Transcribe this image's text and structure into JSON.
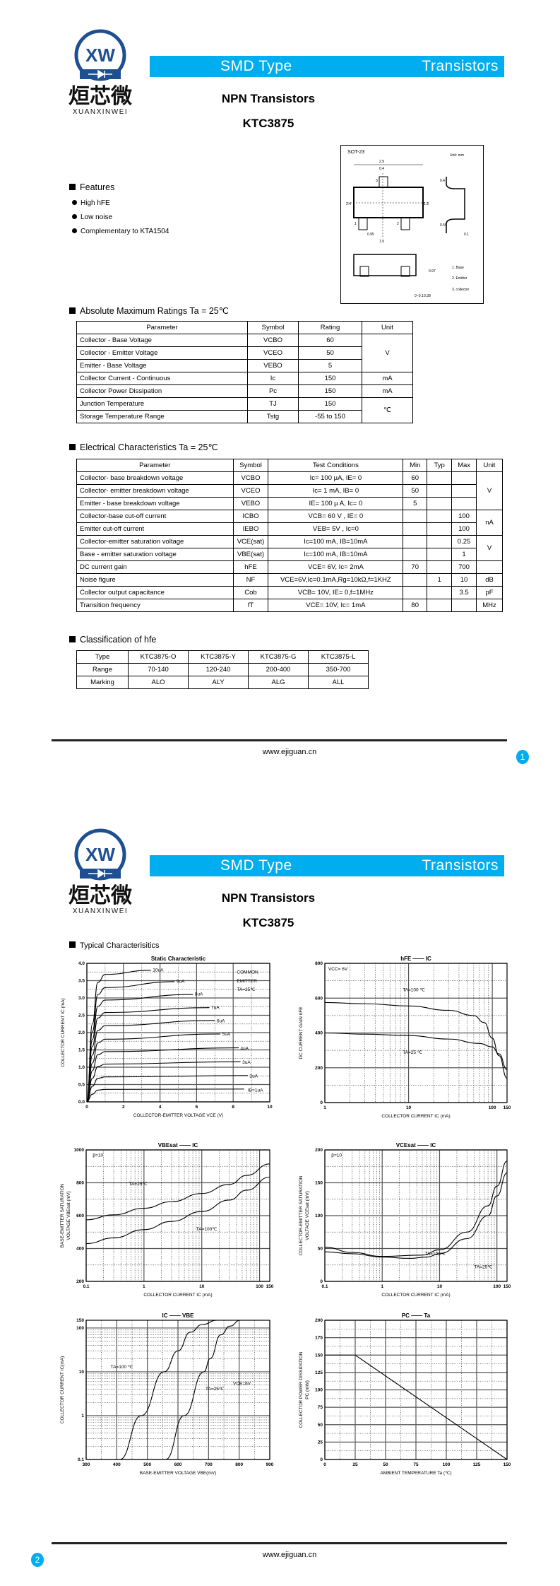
{
  "logo": {
    "letters": "XW",
    "chinese": "烜芯微",
    "latin": "XUANXINWEI",
    "color": "#1d4f91"
  },
  "header": {
    "left": "SMD Type",
    "right": "Transistors",
    "color": "#00adee"
  },
  "title": {
    "line1": "NPN  Transistors",
    "line2": "KTC3875"
  },
  "package": {
    "name": "SOT-23",
    "unit": "Unit: mm",
    "dims": [
      "2.9",
      "0.4",
      "2.4",
      "1.3",
      "0.95",
      "1.9",
      "0.97",
      "0.55",
      "0.1",
      "0.38",
      "0~0.1",
      "0.4"
    ],
    "pins": [
      "1",
      "2",
      "3"
    ],
    "legend": [
      "1. Base",
      "2. Emitter",
      "3. collector"
    ]
  },
  "features": {
    "title": "Features",
    "items": [
      "High hFE",
      "Low noise",
      "Complementary to KTA1504"
    ]
  },
  "abs_max": {
    "title": "Absolute Maximum Ratings Ta = 25℃",
    "headers": [
      "Parameter",
      "Symbol",
      "Rating",
      "Unit"
    ],
    "rows": [
      [
        "Collector - Base Voltage",
        "VCBO",
        "60"
      ],
      [
        "Collector - Emitter Voltage",
        "VCEO",
        "50"
      ],
      [
        "Emitter - Base Voltage",
        "VEBO",
        "5"
      ],
      [
        "Collector Current  - Continuous",
        "Ic",
        "150",
        "mA"
      ],
      [
        "Collector Power Dissipation",
        "Pc",
        "150",
        "mA"
      ],
      [
        "Junction Temperature",
        "TJ",
        "150"
      ],
      [
        "Storage Temperature Range",
        "Tstg",
        "-55 to 150"
      ]
    ],
    "units": {
      "v": "V",
      "c": "℃"
    }
  },
  "elec": {
    "title": "Electrical Characteristics Ta = 25℃",
    "headers": [
      "Parameter",
      "Symbol",
      "Test Conditions",
      "Min",
      "Typ",
      "Max",
      "Unit"
    ],
    "rows": [
      [
        "Collector- base breakdown voltage",
        "VCBO",
        "Ic= 100 µA,   IE= 0",
        "60",
        "",
        ""
      ],
      [
        "Collector- emitter breakdown voltage",
        "VCEO",
        "Ic= 1 mA,   IB= 0",
        "50",
        "",
        ""
      ],
      [
        "Emitter - base breakdown voltage",
        "VEBO",
        "IE= 100 µ A,   Ic= 0",
        "5",
        "",
        ""
      ],
      [
        "Collector-base cut-off current",
        "ICBO",
        "VCB= 60 V , IE= 0",
        "",
        "",
        "100"
      ],
      [
        "Emitter cut-off current",
        "IEBO",
        "VEB= 5V , Ic=0",
        "",
        "",
        "100"
      ],
      [
        "Collector-emitter saturation voltage",
        "VCE(sat)",
        "Ic=100 mA, IB=10mA",
        "",
        "",
        "0.25"
      ],
      [
        "Base - emitter saturation voltage",
        "VBE(sat)",
        "Ic=100 mA, IB=10mA",
        "",
        "",
        "1"
      ],
      [
        "DC current gain",
        "hFE",
        "VCE= 6V, Ic= 2mA",
        "70",
        "",
        "700",
        ""
      ],
      [
        "Noise figure",
        "NF",
        "VCE=6V,Ic=0.1mA,Rg=10kΩ,f=1KHZ",
        "",
        "1",
        "10",
        "dB"
      ],
      [
        "Collector output  capacitance",
        "Cob",
        "VCB= 10V, IE= 0,f=1MHz",
        "",
        "",
        "3.5",
        "pF"
      ],
      [
        "Transition frequency",
        "fT",
        "VCE= 10V, Ic= 1mA",
        "80",
        "",
        "",
        "MHz"
      ]
    ],
    "units": {
      "v1": "V",
      "na": "nA",
      "v2": "V"
    }
  },
  "classification": {
    "title": "Classification of hfe",
    "rows": [
      [
        "Type",
        "KTC3875-O",
        "KTC3875-Y",
        "KTC3875-G",
        "KTC3875-L"
      ],
      [
        "Range",
        "70-140",
        "120-240",
        "200-400",
        "350-700"
      ],
      [
        "Marking",
        "ALO",
        "ALY",
        "ALG",
        "ALL"
      ]
    ]
  },
  "footer": {
    "url": "www.ejiguan.cn",
    "page1": "1",
    "page2": "2"
  },
  "typical": {
    "title": "Typical  Characterisitics"
  },
  "chart_data": [
    {
      "type": "line",
      "title": "Static Characteristic",
      "xlabel": "COLLECTOR-EMITTER VOLTAGE   VCE   (V)",
      "ylabel": [
        "COLLECTOR CURRENT   IC   (mA)"
      ],
      "xscale": "linear",
      "yscale": "linear",
      "xlim": [
        0,
        10
      ],
      "ylim": [
        0,
        4
      ],
      "grid": true,
      "xticks": [
        0,
        2,
        4,
        6,
        8,
        10
      ],
      "yticks": [
        0,
        0.5,
        1,
        1.5,
        2,
        2.5,
        3,
        3.5,
        4
      ],
      "ytick_labels": [
        "0.0",
        "0.5",
        "1.0",
        "1.5",
        "2.0",
        "2.5",
        "3.0",
        "3.5",
        "4.0"
      ],
      "annotations": [
        "COMMON",
        "EMITTER",
        "TA=25℃"
      ],
      "series": [
        {
          "name": "IB=1uA",
          "points": [
            [
              0,
              0
            ],
            [
              0.3,
              0.22
            ],
            [
              0.6,
              0.34
            ],
            [
              1,
              0.36
            ],
            [
              8.6,
              0.37
            ]
          ]
        },
        {
          "name": "2uA",
          "points": [
            [
              0,
              0
            ],
            [
              0.3,
              0.45
            ],
            [
              0.6,
              0.68
            ],
            [
              1,
              0.72
            ],
            [
              8.8,
              0.76
            ]
          ]
        },
        {
          "name": "3uA",
          "points": [
            [
              0,
              0
            ],
            [
              0.3,
              0.68
            ],
            [
              0.6,
              1.02
            ],
            [
              1,
              1.09
            ],
            [
              8.4,
              1.16
            ]
          ]
        },
        {
          "name": "4uA",
          "points": [
            [
              0,
              0
            ],
            [
              0.3,
              0.9
            ],
            [
              0.6,
              1.36
            ],
            [
              1,
              1.45
            ],
            [
              8.3,
              1.56
            ]
          ]
        },
        {
          "name": "5uA",
          "points": [
            [
              0,
              0
            ],
            [
              0.3,
              1.12
            ],
            [
              0.6,
              1.7
            ],
            [
              1,
              1.81
            ],
            [
              7.3,
              1.96
            ]
          ]
        },
        {
          "name": "6uA",
          "points": [
            [
              0,
              0
            ],
            [
              0.3,
              1.35
            ],
            [
              0.6,
              2.06
            ],
            [
              1,
              2.2
            ],
            [
              7,
              2.35
            ]
          ]
        },
        {
          "name": "7uA",
          "points": [
            [
              0,
              0
            ],
            [
              0.3,
              1.6
            ],
            [
              0.6,
              2.42
            ],
            [
              1,
              2.58
            ],
            [
              6.7,
              2.72
            ]
          ]
        },
        {
          "name": "8uA",
          "points": [
            [
              0,
              0
            ],
            [
              0.3,
              1.8
            ],
            [
              0.6,
              2.76
            ],
            [
              1,
              2.94
            ],
            [
              5.8,
              3.1
            ]
          ]
        },
        {
          "name": "9uA",
          "points": [
            [
              0,
              0
            ],
            [
              0.3,
              2.02
            ],
            [
              0.6,
              3.1
            ],
            [
              1,
              3.3
            ],
            [
              4.8,
              3.47
            ]
          ]
        },
        {
          "name": "10uA",
          "points": [
            [
              0,
              0
            ],
            [
              0.3,
              2.25
            ],
            [
              0.6,
              3.45
            ],
            [
              1,
              3.68
            ],
            [
              3.5,
              3.8
            ]
          ]
        }
      ]
    },
    {
      "type": "line",
      "title": "hFE —— IC",
      "xlabel": "COLLECTOR CURRENT   IC   (mA)",
      "ylabel": [
        "DC CURRENT GAIN   hFE"
      ],
      "xscale": "log",
      "yscale": "linear",
      "xlim": [
        1,
        150
      ],
      "ylim": [
        0,
        800
      ],
      "grid": true,
      "xticks": [
        1,
        10,
        100,
        150
      ],
      "yticks": [
        0,
        200,
        400,
        600,
        800
      ],
      "annotations": [
        "VCC= 6V"
      ],
      "series": [
        {
          "name": "TA=100 ℃",
          "points": [
            [
              1,
              575
            ],
            [
              3,
              568
            ],
            [
              10,
              555
            ],
            [
              30,
              530
            ],
            [
              60,
              500
            ],
            [
              80,
              460
            ],
            [
              100,
              370
            ],
            [
              120,
              270
            ],
            [
              150,
              140
            ]
          ]
        },
        {
          "name": "TA=25 ℃",
          "points": [
            [
              1,
              400
            ],
            [
              3,
              393
            ],
            [
              10,
              385
            ],
            [
              30,
              365
            ],
            [
              70,
              340
            ],
            [
              100,
              320
            ],
            [
              120,
              280
            ],
            [
              150,
              190
            ]
          ]
        }
      ]
    },
    {
      "type": "line",
      "title": "VBEsat —— IC",
      "xlabel": "COLLECTOR CURRENT   IC   (mA)",
      "ylabel": [
        "BASE-EMITTER SATURATION",
        "VOLTAGE   VBEsat   (mV)"
      ],
      "xscale": "log",
      "yscale": "linear",
      "xlim": [
        0.1,
        150
      ],
      "ylim": [
        200,
        1000
      ],
      "grid": true,
      "xticks": [
        0.1,
        1,
        10,
        100,
        150
      ],
      "yticks": [
        200,
        400,
        600,
        800,
        1000
      ],
      "annotations": [
        "β=10"
      ],
      "series": [
        {
          "name": "TA=25℃",
          "points": [
            [
              0.1,
              575
            ],
            [
              0.3,
              605
            ],
            [
              1,
              645
            ],
            [
              3,
              685
            ],
            [
              10,
              735
            ],
            [
              30,
              790
            ],
            [
              60,
              845
            ],
            [
              150,
              915
            ]
          ]
        },
        {
          "name": "TA=100℃",
          "points": [
            [
              0.1,
              430
            ],
            [
              0.3,
              465
            ],
            [
              1,
              515
            ],
            [
              3,
              565
            ],
            [
              10,
              625
            ],
            [
              30,
              695
            ],
            [
              60,
              755
            ],
            [
              150,
              835
            ]
          ]
        }
      ]
    },
    {
      "type": "line",
      "title": "VCEsat —— IC",
      "xlabel": "COLLECTOR CURRENT   IC   (mA)",
      "ylabel": [
        "COLLECTOR-EMITTER SATURATION",
        "VOLTAGE   VCEsat   (mV)"
      ],
      "xscale": "log",
      "yscale": "linear",
      "xlim": [
        0.1,
        150
      ],
      "ylim": [
        0,
        200
      ],
      "grid": true,
      "xticks": [
        0.1,
        1,
        10,
        100,
        150
      ],
      "yticks": [
        0,
        50,
        100,
        150,
        200
      ],
      "annotations": [
        "β=10"
      ],
      "series": [
        {
          "name": "TA=100℃",
          "points": [
            [
              0.1,
              52
            ],
            [
              0.3,
              44
            ],
            [
              1,
              38
            ],
            [
              5,
              40
            ],
            [
              10,
              48
            ],
            [
              30,
              75
            ],
            [
              70,
              115
            ],
            [
              100,
              145
            ],
            [
              150,
              183
            ]
          ]
        },
        {
          "name": "TA=25℃",
          "points": [
            [
              0.1,
              45
            ],
            [
              0.3,
              42
            ],
            [
              1,
              37
            ],
            [
              3,
              35
            ],
            [
              6,
              37
            ],
            [
              10,
              42
            ],
            [
              30,
              65
            ],
            [
              70,
              100
            ],
            [
              100,
              130
            ],
            [
              150,
              165
            ]
          ]
        }
      ]
    },
    {
      "type": "line",
      "title": "IC —— VBE",
      "xlabel": "BASE-EMITTER VOLTAGE      VBE(mV)",
      "ylabel": [
        "COLLECTOR CURRENT   IC(mA)"
      ],
      "xscale": "linear",
      "yscale": "log",
      "xlim": [
        300,
        900
      ],
      "ylim": [
        0.1,
        150
      ],
      "grid": true,
      "xticks": [
        300,
        400,
        500,
        600,
        700,
        800,
        900
      ],
      "yticks": [
        0.1,
        1,
        10,
        100,
        150
      ],
      "annotations": [
        "VCE=6V"
      ],
      "series": [
        {
          "name": "TA=100 ℃",
          "points": [
            [
              410,
              0.1
            ],
            [
              480,
              1
            ],
            [
              555,
              10
            ],
            [
              600,
              30
            ],
            [
              640,
              80
            ],
            [
              680,
              120
            ],
            [
              727,
              150
            ]
          ]
        },
        {
          "name": "TA=25℃",
          "points": [
            [
              560,
              0.1
            ],
            [
              620,
              1
            ],
            [
              685,
              10
            ],
            [
              705,
              20
            ],
            [
              740,
              70
            ],
            [
              770,
              110
            ],
            [
              803,
              150
            ]
          ]
        }
      ]
    },
    {
      "type": "line",
      "title": "PC —— Ta",
      "xlabel": "AMBIENT TEMPERATURE    Ta    (℃)",
      "ylabel": [
        "COLLECTOR POWER DISSIPATION",
        "PC   (mW)"
      ],
      "xscale": "linear",
      "yscale": "linear",
      "xlim": [
        0,
        150
      ],
      "ylim": [
        0,
        200
      ],
      "grid": true,
      "xticks": [
        0,
        25,
        50,
        75,
        100,
        125,
        150
      ],
      "yticks": [
        0,
        25,
        50,
        75,
        100,
        125,
        150,
        175,
        200
      ],
      "series": [
        {
          "points": [
            [
              0,
              150
            ],
            [
              25,
              150
            ],
            [
              150,
              0
            ]
          ]
        }
      ]
    }
  ]
}
